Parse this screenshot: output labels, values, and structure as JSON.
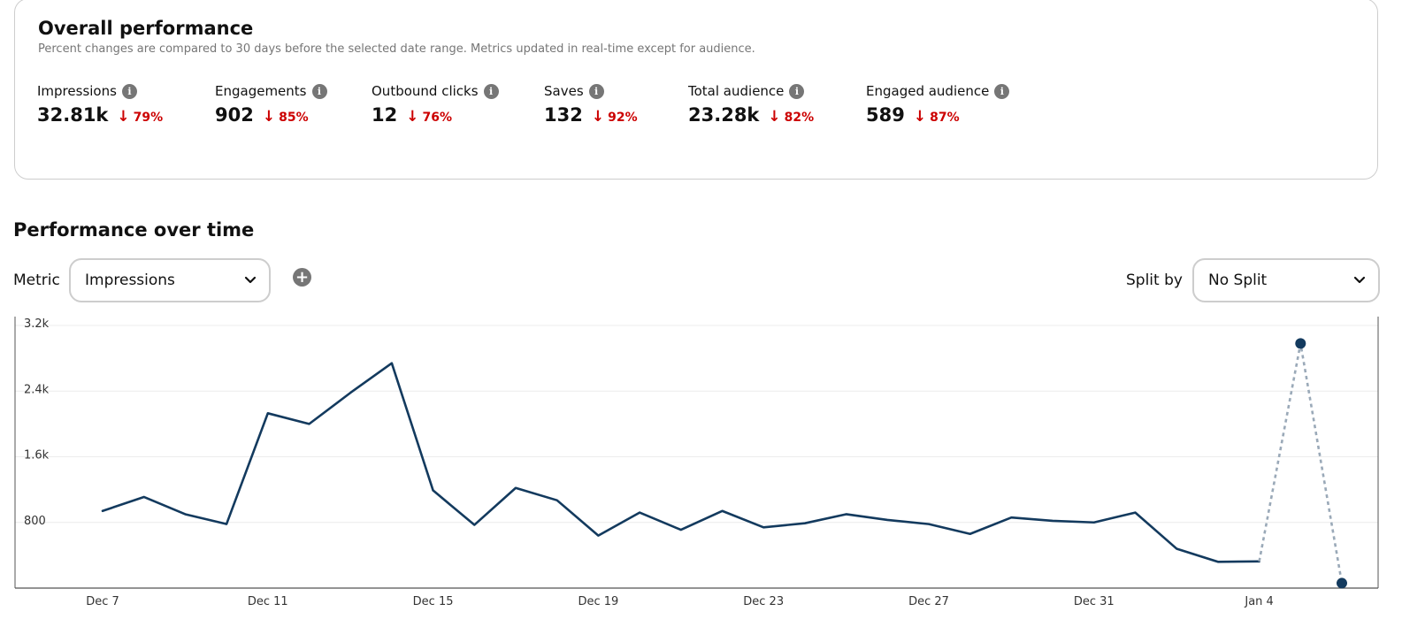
{
  "overall": {
    "title": "Overall performance",
    "subtitle": "Percent changes are compared to 30 days before the selected date range. Metrics updated in real-time except for audience.",
    "metrics": [
      {
        "label": "Impressions",
        "value": "32.81k",
        "change": "79%"
      },
      {
        "label": "Engagements",
        "value": "902",
        "change": "85%"
      },
      {
        "label": "Outbound clicks",
        "value": "12",
        "change": "76%"
      },
      {
        "label": "Saves",
        "value": "132",
        "change": "92%"
      },
      {
        "label": "Total audience",
        "value": "23.28k",
        "change": "82%"
      },
      {
        "label": "Engaged audience",
        "value": "589",
        "change": "87%"
      }
    ],
    "info_icon": "info-icon",
    "down_icon": "arrow-down-icon",
    "negative_color": "#cc0000"
  },
  "over_time": {
    "title": "Performance over time",
    "metric_label": "Metric",
    "metric_value": "Impressions",
    "split_label": "Split by",
    "split_value": "No Split",
    "add_icon": "plus-circle-icon",
    "dropdown_icon": "chevron-down-icon"
  },
  "chart_data": {
    "type": "line",
    "title": "",
    "xlabel": "",
    "ylabel": "",
    "ylim": [
      0,
      3200
    ],
    "y_ticks": [
      "800",
      "1.6k",
      "2.4k",
      "3.2k"
    ],
    "y_tick_values": [
      800,
      1600,
      2400,
      3200
    ],
    "x_ticks": [
      "Dec 7",
      "Dec 11",
      "Dec 15",
      "Dec 19",
      "Dec 23",
      "Dec 27",
      "Dec 31",
      "Jan 4"
    ],
    "x": [
      "Dec 7",
      "Dec 8",
      "Dec 9",
      "Dec 10",
      "Dec 11",
      "Dec 12",
      "Dec 13",
      "Dec 14",
      "Dec 15",
      "Dec 16",
      "Dec 17",
      "Dec 18",
      "Dec 19",
      "Dec 20",
      "Dec 21",
      "Dec 22",
      "Dec 23",
      "Dec 24",
      "Dec 25",
      "Dec 26",
      "Dec 27",
      "Dec 28",
      "Dec 29",
      "Dec 30",
      "Dec 31",
      "Jan 1",
      "Jan 2",
      "Jan 3",
      "Jan 4",
      "Jan 5",
      "Jan 6"
    ],
    "series": [
      {
        "values": [
          940,
          1110,
          900,
          780,
          2130,
          2000,
          2380,
          2740,
          1190,
          770,
          1220,
          1070,
          640,
          920,
          710,
          940,
          740,
          790,
          900,
          830,
          780,
          660,
          860,
          820,
          800,
          920,
          480,
          320,
          325,
          2980,
          60
        ],
        "provisional_from_index": 28,
        "color": "#133a5e",
        "provisional_color": "#9aa9b8"
      }
    ],
    "grid": "horizontal"
  }
}
